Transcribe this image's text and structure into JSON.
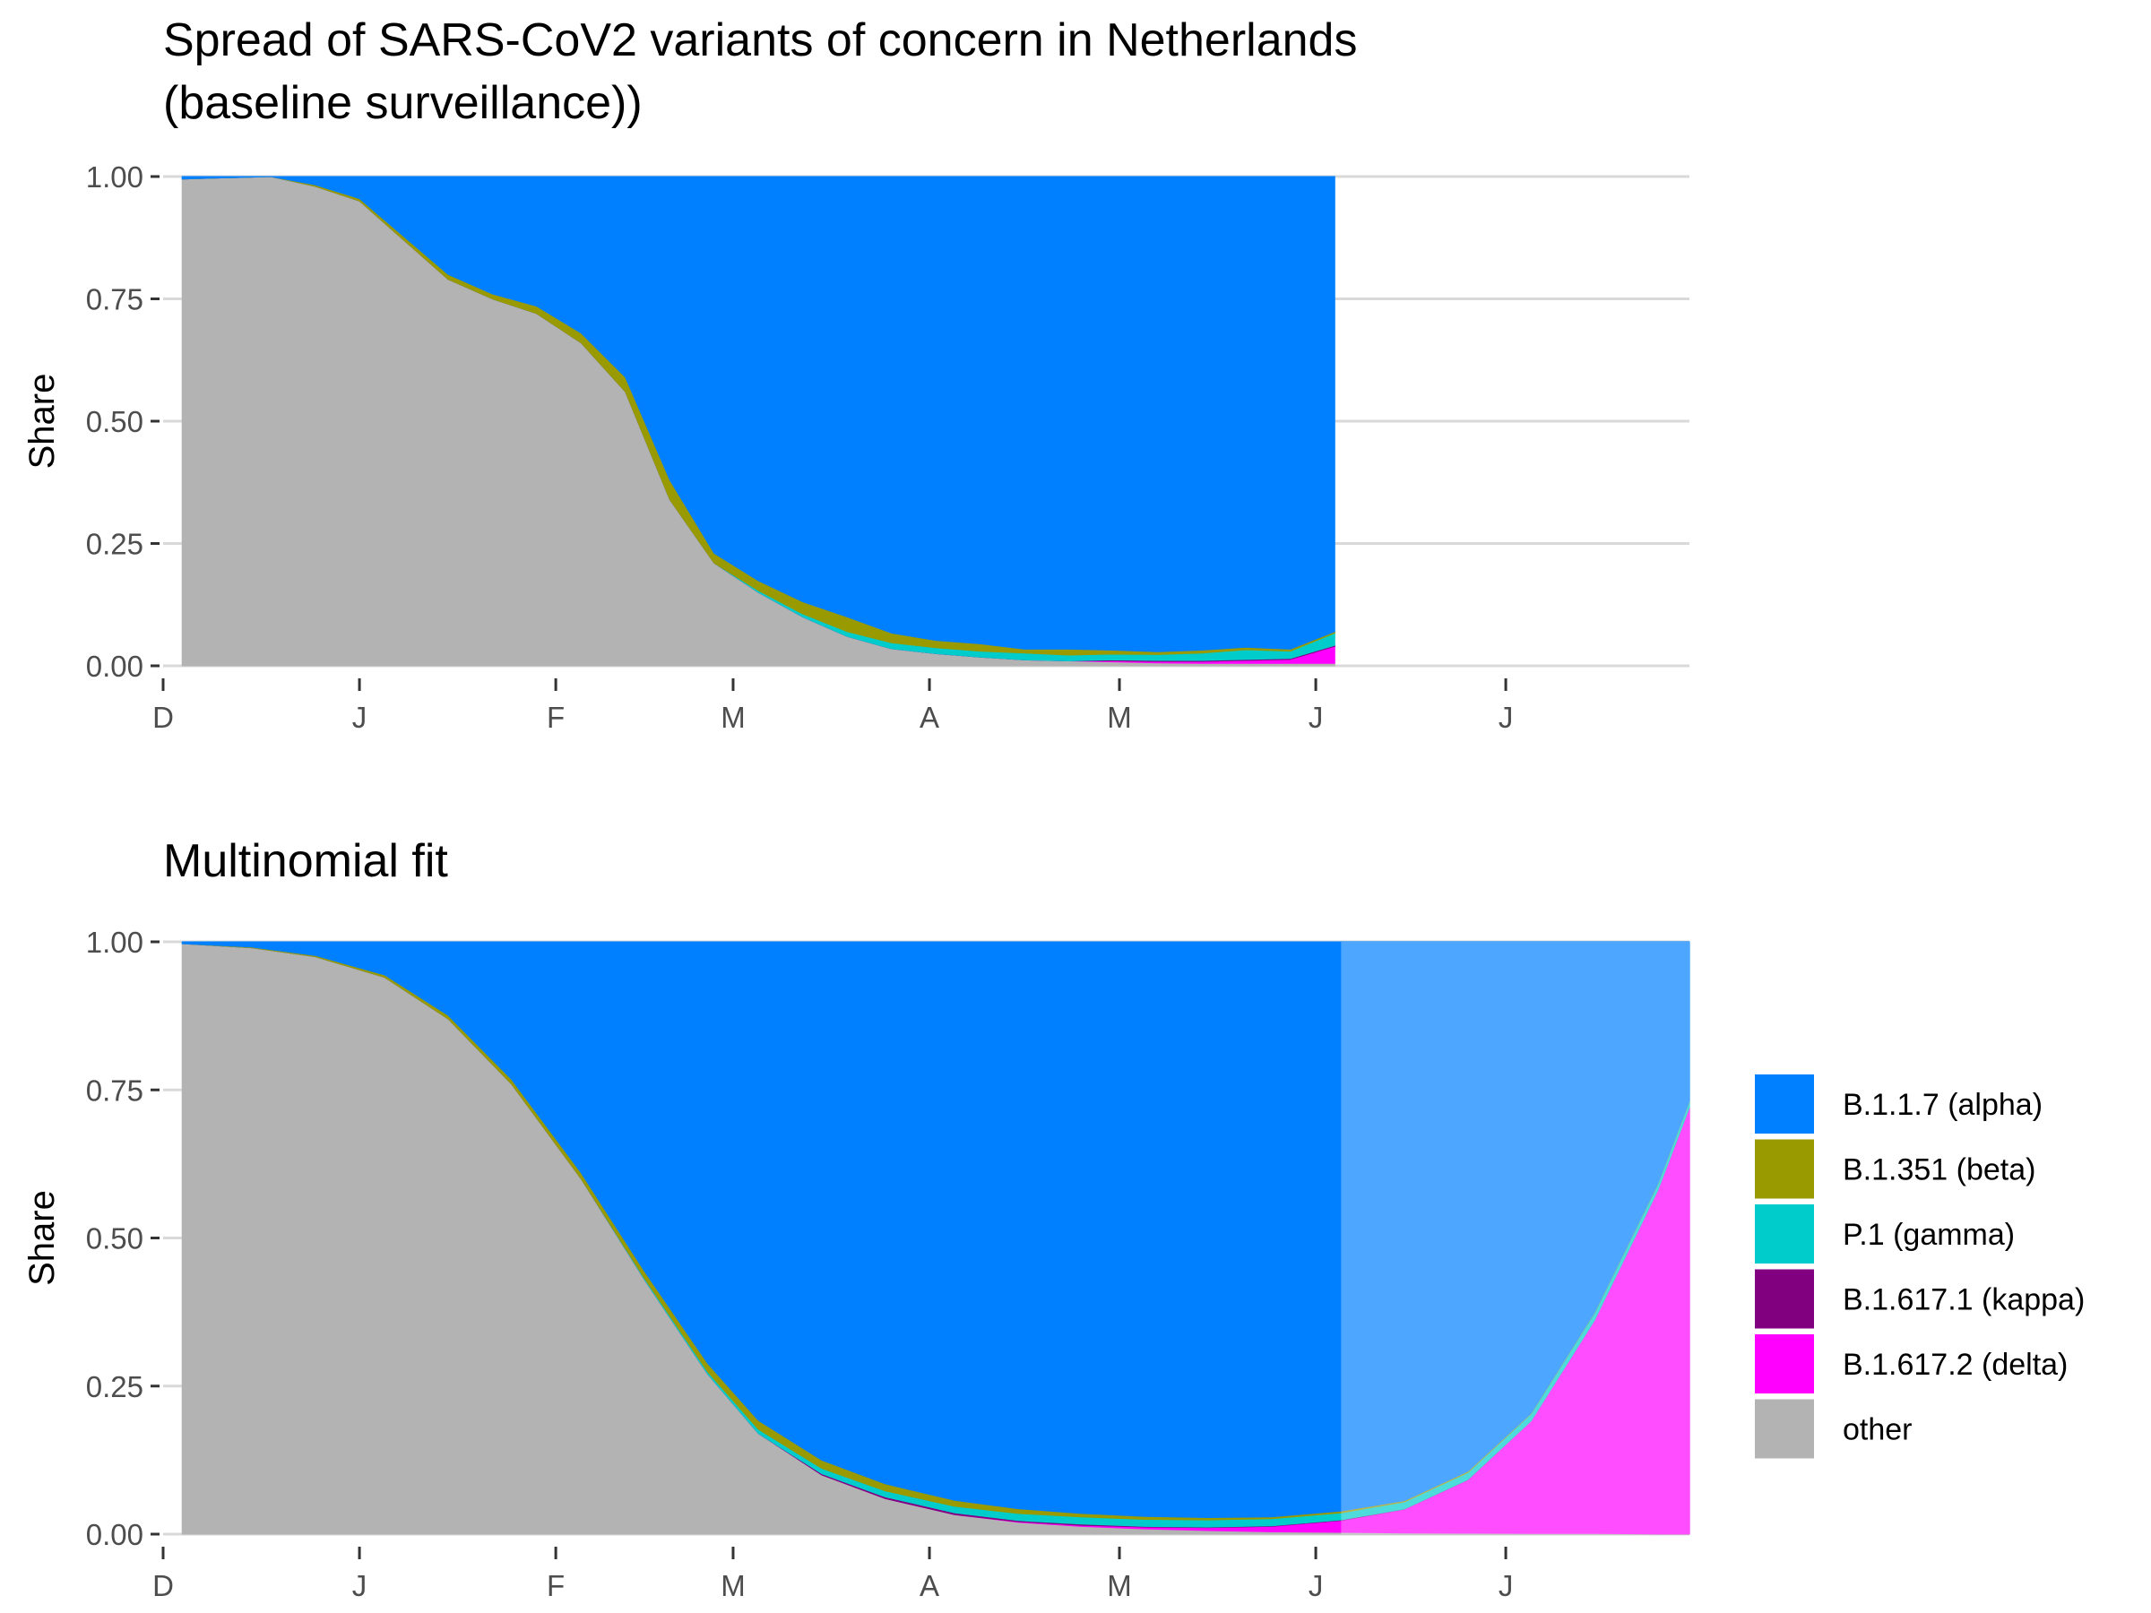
{
  "title_line1": "Spread of SARS-CoV2 variants of concern in Netherlands",
  "title_line2": "(baseline surveillance))",
  "colors": {
    "alpha": "#0080FF",
    "beta": "#999900",
    "gamma": "#00CCCC",
    "kappa": "#800080",
    "delta": "#FF00FF",
    "other": "#B3B3B3"
  },
  "legend": [
    {
      "key": "alpha",
      "label": "B.1.1.7 (alpha)"
    },
    {
      "key": "beta",
      "label": "B.1.351 (beta)"
    },
    {
      "key": "gamma",
      "label": "P.1 (gamma)"
    },
    {
      "key": "kappa",
      "label": "B.1.617.1 (kappa)"
    },
    {
      "key": "delta",
      "label": "B.1.617.2 (delta)"
    },
    {
      "key": "other",
      "label": "other"
    }
  ],
  "chart_data": [
    {
      "type": "area",
      "title": "",
      "ylabel": "Share",
      "xlabel": "",
      "ylim": [
        0,
        1
      ],
      "y_ticks": [
        "0.00",
        "0.25",
        "0.50",
        "0.75",
        "1.00"
      ],
      "x_ticks": [
        "D",
        "J",
        "F",
        "M",
        "A",
        "M",
        "J",
        "J"
      ],
      "x_tick_dates": [
        "2020-12-01",
        "2021-01-01",
        "2021-02-01",
        "2021-03-01",
        "2021-04-01",
        "2021-05-01",
        "2021-06-01",
        "2021-07-01"
      ],
      "xlim": [
        "2020-12-01",
        "2021-07-30"
      ],
      "stacking": "fractions per date, bottom to top: other, delta, kappa, gamma, beta, alpha",
      "dates": [
        "2020-12-04",
        "2020-12-18",
        "2020-12-25",
        "2021-01-01",
        "2021-01-15",
        "2021-01-22",
        "2021-01-29",
        "2021-02-05",
        "2021-02-12",
        "2021-02-19",
        "2021-02-26",
        "2021-03-05",
        "2021-03-12",
        "2021-03-19",
        "2021-03-26",
        "2021-04-02",
        "2021-04-09",
        "2021-04-16",
        "2021-04-23",
        "2021-04-30",
        "2021-05-07",
        "2021-05-14",
        "2021-05-21",
        "2021-05-28",
        "2021-06-04"
      ],
      "series": [
        {
          "name": "other",
          "values": [
            0.995,
            1.0,
            0.98,
            0.95,
            0.79,
            0.75,
            0.72,
            0.66,
            0.56,
            0.34,
            0.21,
            0.15,
            0.1,
            0.06,
            0.035,
            0.025,
            0.018,
            0.012,
            0.01,
            0.008,
            0.006,
            0.005,
            0.005,
            0.005,
            0.005
          ]
        },
        {
          "name": "B.1.617.2 (delta)",
          "values": [
            0,
            0,
            0,
            0,
            0,
            0,
            0,
            0,
            0,
            0,
            0,
            0,
            0,
            0,
            0,
            0,
            0,
            0,
            0,
            0.002,
            0.003,
            0.004,
            0.006,
            0.008,
            0.035
          ]
        },
        {
          "name": "B.1.617.1 (kappa)",
          "values": [
            0,
            0,
            0,
            0,
            0,
            0,
            0,
            0,
            0,
            0,
            0,
            0,
            0,
            0,
            0,
            0,
            0,
            0,
            0,
            0.002,
            0.002,
            0.002,
            0.002,
            0.002,
            0.002
          ]
        },
        {
          "name": "P.1 (gamma)",
          "values": [
            0,
            0,
            0,
            0,
            0,
            0,
            0,
            0,
            0,
            0,
            0,
            0.004,
            0.006,
            0.01,
            0.012,
            0.012,
            0.012,
            0.014,
            0.012,
            0.012,
            0.012,
            0.015,
            0.02,
            0.015,
            0.025
          ]
        },
        {
          "name": "B.1.351 (beta)",
          "values": [
            0,
            0,
            0.003,
            0.005,
            0.01,
            0.01,
            0.015,
            0.02,
            0.03,
            0.04,
            0.02,
            0.02,
            0.025,
            0.03,
            0.02,
            0.015,
            0.015,
            0.008,
            0.012,
            0.008,
            0.006,
            0.006,
            0.005,
            0.004,
            0.003
          ]
        },
        {
          "name": "B.1.1.7 (alpha)",
          "values": [
            0.005,
            0.0,
            0.017,
            0.045,
            0.2,
            0.24,
            0.265,
            0.32,
            0.41,
            0.62,
            0.77,
            0.826,
            0.869,
            0.9,
            0.933,
            0.948,
            0.955,
            0.966,
            0.966,
            0.968,
            0.971,
            0.968,
            0.962,
            0.966,
            0.93
          ]
        }
      ]
    },
    {
      "type": "area",
      "title": "Multinomial fit",
      "ylabel": "Share",
      "xlabel": "",
      "ylim": [
        0,
        1
      ],
      "y_ticks": [
        "0.00",
        "0.25",
        "0.50",
        "0.75",
        "1.00"
      ],
      "x_ticks": [
        "D",
        "J",
        "F",
        "M",
        "A",
        "M",
        "J",
        "J"
      ],
      "x_tick_dates": [
        "2020-12-01",
        "2021-01-01",
        "2021-02-01",
        "2021-03-01",
        "2021-04-01",
        "2021-05-01",
        "2021-06-01",
        "2021-07-01"
      ],
      "xlim": [
        "2020-12-01",
        "2021-07-30"
      ],
      "forecast_from": "2021-06-05",
      "stacking": "fractions per date, bottom to top: other, delta, kappa, gamma, beta, alpha",
      "dates": [
        "2020-12-04",
        "2020-12-15",
        "2020-12-25",
        "2021-01-05",
        "2021-01-15",
        "2021-01-25",
        "2021-02-05",
        "2021-02-15",
        "2021-02-25",
        "2021-03-05",
        "2021-03-15",
        "2021-03-25",
        "2021-04-05",
        "2021-04-15",
        "2021-04-25",
        "2021-05-05",
        "2021-05-15",
        "2021-05-25",
        "2021-06-05",
        "2021-06-15",
        "2021-06-25",
        "2021-07-05",
        "2021-07-15",
        "2021-07-25",
        "2021-07-30"
      ],
      "series": [
        {
          "name": "other",
          "values": [
            0.997,
            0.99,
            0.975,
            0.94,
            0.87,
            0.76,
            0.6,
            0.43,
            0.27,
            0.17,
            0.1,
            0.06,
            0.033,
            0.02,
            0.013,
            0.009,
            0.006,
            0.004,
            0.003,
            0.002,
            0.0015,
            0.001,
            0.001,
            0.0005,
            0.0005
          ]
        },
        {
          "name": "B.1.617.2 (delta)",
          "values": [
            0,
            0,
            0,
            0,
            0,
            0,
            0,
            0,
            0,
            0,
            0,
            0,
            0,
            0.001,
            0.002,
            0.003,
            0.005,
            0.009,
            0.02,
            0.04,
            0.09,
            0.19,
            0.36,
            0.58,
            0.72
          ]
        },
        {
          "name": "B.1.617.1 (kappa)",
          "values": [
            0,
            0,
            0,
            0,
            0,
            0,
            0,
            0,
            0,
            0,
            0.002,
            0.003,
            0.003,
            0.002,
            0.002,
            0.001,
            0.001,
            0.001,
            0.001,
            0.0005,
            0.0005,
            0,
            0,
            0,
            0
          ]
        },
        {
          "name": "P.1 (gamma)",
          "values": [
            0,
            0,
            0,
            0,
            0,
            0,
            0,
            0.002,
            0.004,
            0.007,
            0.009,
            0.01,
            0.011,
            0.012,
            0.012,
            0.012,
            0.012,
            0.012,
            0.012,
            0.012,
            0.012,
            0.012,
            0.012,
            0.01,
            0.01
          ]
        },
        {
          "name": "B.1.351 (beta)",
          "values": [
            0,
            0.001,
            0.002,
            0.004,
            0.006,
            0.008,
            0.01,
            0.012,
            0.014,
            0.015,
            0.014,
            0.012,
            0.01,
            0.008,
            0.006,
            0.005,
            0.004,
            0.003,
            0.003,
            0.002,
            0.002,
            0.001,
            0.001,
            0.001,
            0.001
          ]
        },
        {
          "name": "B.1.1.7 (alpha)",
          "values": [
            0.003,
            0.009,
            0.023,
            0.056,
            0.124,
            0.232,
            0.39,
            0.556,
            0.712,
            0.808,
            0.875,
            0.915,
            0.943,
            0.957,
            0.965,
            0.97,
            0.972,
            0.971,
            0.961,
            0.9435,
            0.894,
            0.796,
            0.626,
            0.4085,
            0.2685
          ]
        }
      ]
    }
  ]
}
